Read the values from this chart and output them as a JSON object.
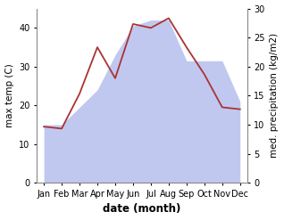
{
  "months": [
    "Jan",
    "Feb",
    "Mar",
    "Apr",
    "May",
    "Jun",
    "Jul",
    "Aug",
    "Sep",
    "Oct",
    "Nov",
    "Dec"
  ],
  "x": [
    0,
    1,
    2,
    3,
    4,
    5,
    6,
    7,
    8,
    9,
    10,
    11
  ],
  "temperature": [
    14.5,
    14.0,
    23.0,
    35.0,
    27.0,
    41.0,
    40.0,
    42.5,
    35.0,
    28.0,
    19.5,
    19.0
  ],
  "precipitation": [
    10,
    10,
    13,
    16,
    22,
    27,
    28,
    28,
    21,
    21,
    21,
    14
  ],
  "temp_color": "#aa3333",
  "precip_fill_color": "#c0c8f0",
  "ylabel_left": "max temp (C)",
  "ylabel_right": "med. precipitation (kg/m2)",
  "xlabel": "date (month)",
  "ylim_left": [
    0,
    45
  ],
  "ylim_right": [
    0,
    30
  ],
  "yticks_left": [
    0,
    10,
    20,
    30,
    40
  ],
  "yticks_right": [
    0,
    5,
    10,
    15,
    20,
    25,
    30
  ],
  "bg_color": "#ffffff",
  "label_fontsize": 7.5,
  "tick_fontsize": 7.0,
  "xlabel_fontsize": 8.5
}
